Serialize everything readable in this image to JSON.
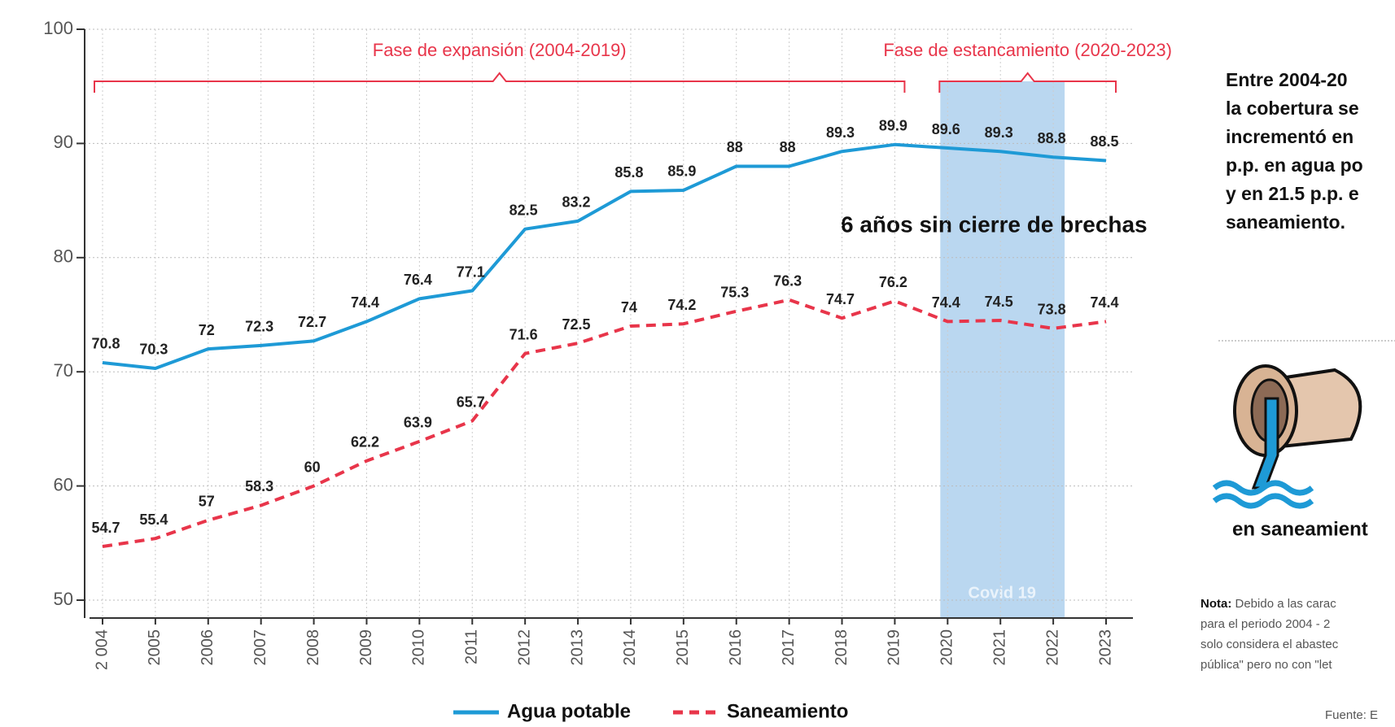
{
  "chart_data": {
    "type": "line",
    "categories": [
      "2 004",
      "2005",
      "2006",
      "2007",
      "2008",
      "2009",
      "2010",
      "2011",
      "2012",
      "2013",
      "2014",
      "2015",
      "2016",
      "2017",
      "2018",
      "2019",
      "2020",
      "2021",
      "2022",
      "2023"
    ],
    "series": [
      {
        "name": "Agua potable",
        "color": "#1e9ad6",
        "values": [
          70.8,
          70.3,
          72,
          72.3,
          72.7,
          74.4,
          76.4,
          77.1,
          82.5,
          83.2,
          85.8,
          85.9,
          88,
          88,
          89.3,
          89.9,
          89.6,
          89.3,
          88.8,
          88.5
        ]
      },
      {
        "name": "Saneamiento",
        "color": "#e8354a",
        "dashed": true,
        "values": [
          54.7,
          55.4,
          57,
          58.3,
          60,
          62.2,
          63.9,
          65.7,
          71.6,
          72.5,
          74,
          74.2,
          75.3,
          76.3,
          74.7,
          76.2,
          74.4,
          74.5,
          73.8,
          74.4
        ]
      }
    ],
    "ylim": [
      50,
      100
    ],
    "yticks": [
      50,
      60,
      70,
      80,
      90,
      100
    ],
    "grid": true,
    "annotations": {
      "phase1": "Fase de expansión (2004-2019)",
      "phase2": "Fase de estancamiento (2020-2023)",
      "gap": "6 años sin cierre de brechas",
      "covid": "Covid 19"
    },
    "side": {
      "lines": [
        "Entre 2004-20",
        "la cobertura se",
        "incrementó en",
        "p.p. en agua po",
        "y en 21.5 p.p. e",
        "saneamiento."
      ],
      "icon_label": "en saneamient",
      "note_title": "Nota:",
      "note_lines": [
        " Debido a las carac",
        "para el periodo 2004 - 2",
        "solo considera el abastec",
        "pública\" pero no con \"let"
      ],
      "source": "Fuente: E"
    }
  }
}
